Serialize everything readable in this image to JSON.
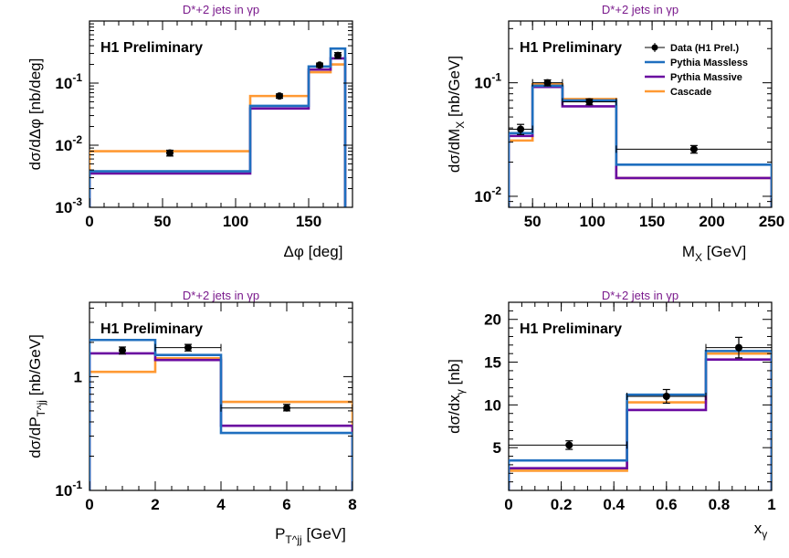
{
  "chart_data": [
    {
      "type": "line",
      "title": "D*+2 jets in γp",
      "annotation": "H1 Preliminary",
      "xlabel": "Δφ [deg]",
      "ylabel": "dσ/dΔφ [nb/deg]",
      "xlim": [
        0,
        180
      ],
      "ylim": [
        0.001,
        1
      ],
      "yscale": "log",
      "xticks": [
        {
          "v": 0,
          "label": "0"
        },
        {
          "v": 50,
          "label": "50"
        },
        {
          "v": 100,
          "label": "100"
        },
        {
          "v": 150,
          "label": "150"
        }
      ],
      "yticks": [
        {
          "v": 0.001,
          "base": "10",
          "exp": "-3"
        },
        {
          "v": 0.01,
          "base": "10",
          "exp": "-2"
        },
        {
          "v": 0.1,
          "base": "10",
          "exp": "-1"
        }
      ],
      "bin_edges": [
        0,
        110,
        150,
        165,
        175
      ],
      "data": [
        {
          "x": 55,
          "y": 0.0075,
          "ylo": 0.0067,
          "yhi": 0.0083
        },
        {
          "x": 130,
          "y": 0.062,
          "ylo": 0.057,
          "yhi": 0.067
        },
        {
          "x": 157.5,
          "y": 0.195,
          "ylo": 0.18,
          "yhi": 0.21
        },
        {
          "x": 170,
          "y": 0.28,
          "ylo": 0.25,
          "yhi": 0.31
        }
      ],
      "series": [
        {
          "name": "Pythia Massless",
          "color": "#1f6fbf",
          "values": [
            0.0038,
            0.043,
            0.185,
            0.36
          ]
        },
        {
          "name": "Pythia Massive",
          "color": "#6a0aa0",
          "values": [
            0.0035,
            0.039,
            0.165,
            0.25
          ]
        },
        {
          "name": "Cascade",
          "color": "#ff9933",
          "values": [
            0.008,
            0.062,
            0.15,
            0.2
          ]
        }
      ]
    },
    {
      "type": "line",
      "title": "D*+2 jets in γp",
      "annotation": "H1 Preliminary",
      "xlabel": "M_X [GeV]",
      "ylabel": "dσ/dM_X [nb/GeV]",
      "xlim": [
        30,
        250
      ],
      "ylim": [
        0.008,
        0.35
      ],
      "yscale": "log",
      "xticks": [
        {
          "v": 50,
          "label": "50"
        },
        {
          "v": 100,
          "label": "100"
        },
        {
          "v": 150,
          "label": "150"
        },
        {
          "v": 200,
          "label": "200"
        },
        {
          "v": 250,
          "label": "250"
        }
      ],
      "yticks": [
        {
          "v": 0.01,
          "base": "10",
          "exp": "-2"
        },
        {
          "v": 0.1,
          "base": "10",
          "exp": "-1"
        }
      ],
      "bin_edges": [
        30,
        50,
        75,
        120,
        250
      ],
      "data": [
        {
          "x": 40,
          "y": 0.039,
          "ylo": 0.035,
          "yhi": 0.043,
          "xlo": 30,
          "xhi": 50
        },
        {
          "x": 62.5,
          "y": 0.1,
          "ylo": 0.094,
          "yhi": 0.106,
          "xlo": 50,
          "xhi": 75
        },
        {
          "x": 97.5,
          "y": 0.068,
          "ylo": 0.064,
          "yhi": 0.072,
          "xlo": 75,
          "xhi": 120
        },
        {
          "x": 185,
          "y": 0.026,
          "ylo": 0.024,
          "yhi": 0.028,
          "xlo": 120,
          "xhi": 250
        }
      ],
      "series": [
        {
          "name": "Pythia Massless",
          "color": "#1f6fbf",
          "values": [
            0.036,
            0.094,
            0.07,
            0.019
          ]
        },
        {
          "name": "Pythia Massive",
          "color": "#6a0aa0",
          "values": [
            0.034,
            0.092,
            0.062,
            0.0145
          ]
        },
        {
          "name": "Cascade",
          "color": "#ff9933",
          "values": [
            0.031,
            0.097,
            0.072,
            0.0145
          ]
        }
      ],
      "legend": {
        "entries": [
          "Data (H1 Prel.)",
          "Pythia Massless",
          "Pythia Massive",
          "Cascade"
        ],
        "placement": "top-right"
      }
    },
    {
      "type": "line",
      "title": "D*+2 jets in γp",
      "annotation": "H1 Preliminary",
      "xlabel": "P_T^jj [GeV]",
      "ylabel": "dσ/dP_T^jj [nb/GeV]",
      "xlim": [
        0,
        8
      ],
      "ylim": [
        0.1,
        4.5
      ],
      "yscale": "log",
      "xticks": [
        {
          "v": 0,
          "label": "0"
        },
        {
          "v": 2,
          "label": "2"
        },
        {
          "v": 4,
          "label": "4"
        },
        {
          "v": 6,
          "label": "6"
        },
        {
          "v": 8,
          "label": "8"
        }
      ],
      "yticks": [
        {
          "v": 0.1,
          "base": "10",
          "exp": "-1"
        },
        {
          "v": 1,
          "base": "1",
          "exp": ""
        }
      ],
      "bin_edges": [
        0,
        2,
        4,
        8
      ],
      "data": [
        {
          "x": 1,
          "y": 1.7,
          "ylo": 1.58,
          "yhi": 1.82
        },
        {
          "x": 3,
          "y": 1.8,
          "ylo": 1.68,
          "yhi": 1.92,
          "xlo": 2,
          "xhi": 4
        },
        {
          "x": 6,
          "y": 0.53,
          "ylo": 0.5,
          "yhi": 0.57,
          "xlo": 4,
          "xhi": 8
        }
      ],
      "series": [
        {
          "name": "Pythia Massless",
          "color": "#1f6fbf",
          "values": [
            2.1,
            1.55,
            0.32
          ]
        },
        {
          "name": "Pythia Massive",
          "color": "#6a0aa0",
          "values": [
            1.6,
            1.4,
            0.37
          ]
        },
        {
          "name": "Cascade",
          "color": "#ff9933",
          "values": [
            1.1,
            1.45,
            0.6
          ]
        }
      ]
    },
    {
      "type": "line",
      "title": "D*+2 jets in γp",
      "annotation": "H1 Preliminary",
      "xlabel": "x_γ",
      "ylabel": "dσ/dx_γ [nb]",
      "xlim": [
        0,
        1
      ],
      "ylim": [
        0,
        22
      ],
      "yscale": "linear",
      "xticks": [
        {
          "v": 0,
          "label": "0"
        },
        {
          "v": 0.2,
          "label": "0.2"
        },
        {
          "v": 0.4,
          "label": "0.4"
        },
        {
          "v": 0.6,
          "label": "0.6"
        },
        {
          "v": 0.8,
          "label": "0.8"
        },
        {
          "v": 1,
          "label": "1"
        }
      ],
      "yticks": [
        {
          "v": 5,
          "base": "5",
          "exp": ""
        },
        {
          "v": 10,
          "base": "10",
          "exp": ""
        },
        {
          "v": 15,
          "base": "15",
          "exp": ""
        },
        {
          "v": 20,
          "base": "20",
          "exp": ""
        }
      ],
      "bin_edges": [
        0,
        0.45,
        0.75,
        1.0
      ],
      "data": [
        {
          "x": 0.23,
          "y": 5.3,
          "ylo": 4.8,
          "yhi": 5.8,
          "xlo": 0,
          "xhi": 0.45
        },
        {
          "x": 0.6,
          "y": 11.0,
          "ylo": 10.2,
          "yhi": 11.8,
          "xlo": 0.45,
          "xhi": 0.75
        },
        {
          "x": 0.875,
          "y": 16.7,
          "ylo": 15.5,
          "yhi": 17.9,
          "xlo": 0.75,
          "xhi": 1.0
        }
      ],
      "series": [
        {
          "name": "Pythia Massless",
          "color": "#1f6fbf",
          "values": [
            3.5,
            11.2,
            16.3
          ]
        },
        {
          "name": "Pythia Massive",
          "color": "#6a0aa0",
          "values": [
            2.6,
            9.4,
            15.3
          ]
        },
        {
          "name": "Cascade",
          "color": "#ff9933",
          "values": [
            2.3,
            10.3,
            16.0
          ]
        }
      ]
    }
  ]
}
